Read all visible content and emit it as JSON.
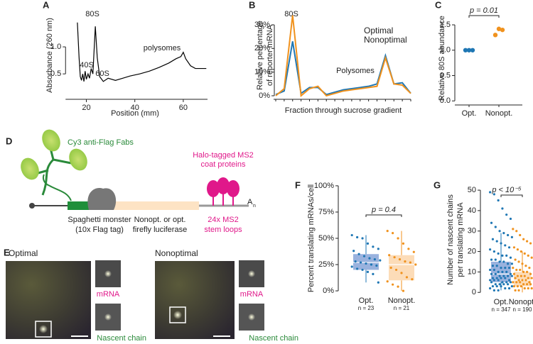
{
  "chart_data": [
    {
      "type": "line",
      "label": "A",
      "xlabel": "Position (mm)",
      "ylabel": [
        "Absorbance (260 nm)"
      ],
      "x": [
        16.3,
        17,
        17.5,
        18,
        18.5,
        19,
        19.5,
        20,
        20.7,
        21.3,
        22,
        22.7,
        23.7,
        24.5,
        25.5,
        27,
        29,
        32,
        35,
        38,
        42,
        46,
        50,
        54,
        57,
        59,
        60,
        61,
        63,
        65,
        69.5
      ],
      "series": [
        {
          "color": "#000000",
          "values": [
            1.45,
            0.8,
            0.45,
            0.38,
            0.5,
            0.36,
            0.55,
            0.4,
            0.5,
            0.42,
            0.6,
            0.5,
            1.38,
            0.8,
            0.45,
            0.36,
            0.42,
            0.38,
            0.42,
            0.46,
            0.5,
            0.55,
            0.62,
            0.7,
            0.78,
            0.82,
            0.9,
            0.78,
            0.65,
            0.6,
            0.6
          ]
        }
      ],
      "xlim": [
        12.3,
        70
      ],
      "ylim": [
        0.03,
        1.67
      ],
      "xticks": [
        20,
        40,
        60
      ],
      "yticks": [
        0.5,
        {
          "value": 1,
          "label": "1.0"
        }
      ],
      "annotations": [
        "40S",
        "60S",
        "80S",
        "polysomes"
      ]
    },
    {
      "type": "line",
      "label": "B",
      "xlabel": "Fraction through sucrose gradient",
      "ylabel": [
        "Relative percentage",
        "of reporter mRNA"
      ],
      "categories": [
        null,
        null,
        null,
        null,
        null,
        null,
        null,
        null,
        null,
        null,
        null,
        null,
        null,
        null,
        null,
        null,
        null
      ],
      "series": [
        {
          "name": "Optimal",
          "color": "#1f77b4",
          "values": [
            0.5,
            2,
            23,
            1,
            3.5,
            3.5,
            0.5,
            1.5,
            2.5,
            3,
            3.5,
            4,
            5,
            17,
            5,
            5.5,
            1
          ]
        },
        {
          "name": "Nonoptimal",
          "color": "#f0921e",
          "values": [
            0,
            3,
            34,
            0,
            3,
            4,
            0,
            1,
            2,
            2.5,
            3,
            3.5,
            4,
            16,
            5,
            4.5,
            1
          ]
        }
      ],
      "ylim": [
        -1.5,
        36
      ],
      "yticks": [
        {
          "value": 0,
          "label": "0%"
        },
        {
          "value": 10,
          "label": "10%"
        },
        {
          "value": 20,
          "label": "20%"
        },
        {
          "value": 30,
          "label": "30%"
        }
      ],
      "annotations": [
        "80S",
        "Polysomes"
      ]
    },
    {
      "type": "dot",
      "label": "C",
      "ylabel": [
        "Relative 80S abundance"
      ],
      "groups": [
        {
          "name": "Opt.",
          "color": "#1f77b4",
          "values": [
            1,
            1,
            1
          ]
        },
        {
          "name": "Nonopt.",
          "color": "#f0921e",
          "values": [
            1.3,
            1.42,
            1.4
          ]
        }
      ],
      "ylim": [
        -0.08,
        1.78
      ],
      "yticks": [
        {
          "value": 0,
          "label": "0.0"
        },
        0.5,
        {
          "value": 1,
          "label": "1.0"
        },
        1.5
      ],
      "annotations": [
        "p = 0.01"
      ]
    },
    {
      "type": "box",
      "label": "F",
      "ylabel": [
        "Percent translating mRNAs/cell"
      ],
      "groups": [
        {
          "name": "Opt.",
          "n_label": "n = 23",
          "color": "#1f77b4",
          "box_color": "#7f9fd6",
          "box": {
            "min": 8,
            "q1": 20,
            "median": 27,
            "q3": 35,
            "max": 53
          },
          "points": [
            53,
            51,
            50,
            45,
            42,
            40,
            38,
            35,
            33,
            31,
            30,
            29,
            28,
            27,
            26,
            25,
            24,
            23,
            21,
            20,
            18,
            16,
            8
          ]
        },
        {
          "name": "Nonopt.",
          "n_label": "n = 21",
          "color": "#f0921e",
          "box_color": "#fbd3a6",
          "box": {
            "min": 0,
            "q1": 10,
            "median": 25,
            "q3": 34,
            "max": 57
          },
          "points": [
            57,
            55,
            50,
            45,
            40,
            37,
            34,
            32,
            30,
            28,
            27,
            25,
            22,
            20,
            17,
            13,
            11,
            9,
            6,
            4,
            0
          ]
        }
      ],
      "ylim": [
        -4,
        104
      ],
      "yticks": [
        {
          "value": 0,
          "label": "0%"
        },
        {
          "value": 25,
          "label": "25%"
        },
        {
          "value": 50,
          "label": "50%"
        },
        {
          "value": 75,
          "label": "75%"
        },
        {
          "value": 100,
          "label": "100%"
        }
      ],
      "annotations": [
        "p = 0.4"
      ]
    },
    {
      "type": "box",
      "label": "G",
      "ylabel": [
        "Number of nascent chains",
        "per translating mRNA"
      ],
      "groups": [
        {
          "name": "Opt.",
          "n_label": "n = 347",
          "color": "#1f77b4",
          "box_color": "#7f9fd6",
          "box": {
            "min": 1,
            "q1": 5,
            "median": 9,
            "q3": 15,
            "max": 29
          },
          "points": [
            49,
            48,
            45,
            41,
            38,
            36,
            34,
            32,
            30,
            29,
            28,
            27,
            26,
            25,
            24,
            23,
            22,
            21,
            20,
            19,
            18,
            18,
            17,
            16,
            16,
            15,
            15,
            14,
            14,
            13,
            13,
            12,
            12,
            12,
            11,
            11,
            10,
            10,
            10,
            9,
            9,
            9,
            8,
            8,
            8,
            8,
            7,
            7,
            7,
            7,
            6,
            6,
            6,
            6,
            5,
            5,
            5,
            5,
            4,
            4,
            4,
            4,
            3,
            3,
            3,
            3,
            2,
            2,
            2,
            1,
            1
          ]
        },
        {
          "name": "Nonopt.",
          "n_label": "n = 190",
          "color": "#f0921e",
          "box_color": "#fbd3a6",
          "box": {
            "min": 0,
            "q1": 3,
            "median": 6,
            "q3": 10,
            "max": 20
          },
          "points": [
            31,
            30,
            28,
            26,
            25,
            24,
            22,
            21,
            20,
            19,
            18,
            17,
            16,
            15,
            14,
            13,
            12,
            12,
            11,
            11,
            10,
            10,
            9,
            9,
            8,
            8,
            8,
            7,
            7,
            7,
            6,
            6,
            6,
            5,
            5,
            5,
            5,
            4,
            4,
            4,
            3,
            3,
            3,
            2,
            2,
            2,
            1,
            1
          ]
        }
      ],
      "ylim": [
        -2,
        53.5
      ],
      "yticks": [
        0,
        10,
        20,
        30,
        40,
        50
      ],
      "annotations": [
        "p < 10⁻⁵"
      ]
    }
  ],
  "diagram": {
    "label": "D",
    "fabs": "Cy3 anti-Flag Fabs",
    "coat": [
      "Halo-tagged MS2",
      "coat proteins"
    ],
    "tag": [
      "Spaghetti monster",
      "(10x Flag tag)"
    ],
    "luciferase": [
      "Nonopt. or opt.",
      "firefly luciferase"
    ],
    "loops": [
      "24x MS2",
      "stem loops"
    ],
    "poly_a": "A",
    "poly_a_sub": "n"
  },
  "micrographs": {
    "label": "E",
    "panels": [
      {
        "title": "Optimal",
        "top": "mRNA",
        "bottom": "Nascent chain"
      },
      {
        "title": "Nonoptimal",
        "top": "mRNA",
        "bottom": "Nascent chain"
      }
    ]
  }
}
